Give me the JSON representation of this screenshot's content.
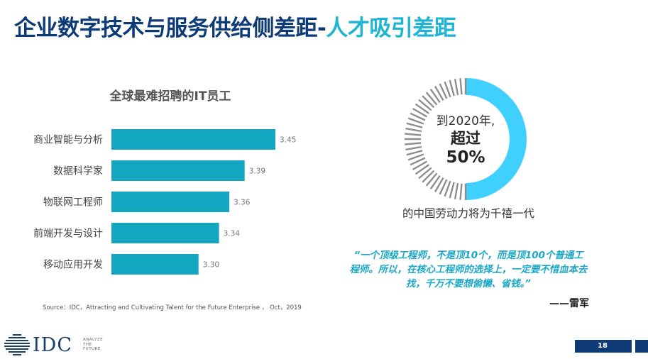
{
  "slide": {
    "title_main": "企业数字技术与服务供给侧差距-",
    "title_accent": "人才吸引差距",
    "page_number": "18",
    "colors": {
      "navy": "#0c3b78",
      "teal": "#1db5d3",
      "bar": "#14a7c2",
      "donut_fill": "#3fd0ff",
      "donut_ticks": "#8e8e8e"
    }
  },
  "chart_data": {
    "type": "bar",
    "orientation": "horizontal",
    "title": "全球最难招聘的IT员工",
    "categories": [
      "商业智能与分析",
      "数据科学家",
      "物联网工程师",
      "前端开发与设计",
      "移动应用开发"
    ],
    "values": [
      3.45,
      3.39,
      3.36,
      3.34,
      3.3
    ],
    "value_labels": [
      "3.45",
      "3.39",
      "3.36",
      "3.34",
      "3.30"
    ],
    "xlim": [
      3.13,
      3.45
    ],
    "xlabel": "",
    "ylabel": ""
  },
  "source": "Source：IDC，Attracting and Cultivating Talent for the Future Enterprise ， Oct，2019",
  "donut": {
    "percent": 50,
    "line1": "到2020年,",
    "line2": "超过",
    "line3": "50%",
    "caption": "的中国劳动力将为千禧一代"
  },
  "quote": {
    "text": "“一个顶级工程师，不是顶10个，而是顶100个普通工程师。所以，在核心工程师的选择上，一定要不惜血本去找，千万不要想偷懒、省钱。”",
    "author": "——雷军"
  },
  "logo": {
    "name": "IDC",
    "tagline": [
      "ANALYZE",
      "THE",
      "FUTURE"
    ]
  }
}
